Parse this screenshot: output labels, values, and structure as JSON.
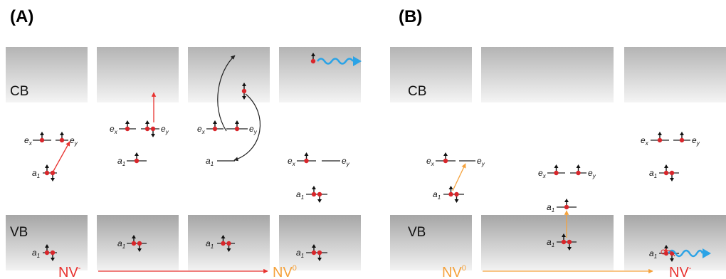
{
  "panels": [
    {
      "label": "(A)",
      "band_labels": {
        "cb": "CB",
        "vb": "VB"
      },
      "process": {
        "from": "NV",
        "from_sup": "-",
        "to": "NV",
        "to_sup": "0",
        "arrow_color": "#e8322f"
      },
      "columns": [
        {
          "levels": [
            {
              "name": "e",
              "sub": "x",
              "electrons": 1
            },
            {
              "name": "e",
              "sub": "y",
              "electrons": 1
            },
            {
              "name": "a",
              "sub": "1",
              "electrons": 2
            },
            {
              "name": "a",
              "sub": "1",
              "electrons": 2
            }
          ]
        },
        {
          "levels": [
            {
              "name": "e",
              "sub": "x",
              "electrons": 1
            },
            {
              "name": "e",
              "sub": "y",
              "electrons": 2
            },
            {
              "name": "a",
              "sub": "1",
              "electrons": 1
            },
            {
              "name": "a",
              "sub": "1",
              "electrons": 2
            }
          ]
        },
        {
          "levels": [
            {
              "name": "e",
              "sub": "x",
              "electrons": 1
            },
            {
              "name": "e",
              "sub": "y",
              "electrons": 1
            },
            {
              "name": "a",
              "sub": "1",
              "electrons": 0
            },
            {
              "name": "a",
              "sub": "1",
              "electrons": 2
            }
          ]
        },
        {
          "levels": [
            {
              "name": "e",
              "sub": "x",
              "electrons": 1
            },
            {
              "name": "e",
              "sub": "y",
              "electrons": 0
            },
            {
              "name": "a",
              "sub": "1",
              "electrons": 2
            },
            {
              "name": "a",
              "sub": "1",
              "electrons": 2
            }
          ]
        }
      ]
    },
    {
      "label": "(B)",
      "band_labels": {
        "cb": "CB",
        "vb": "VB"
      },
      "process": {
        "from": "NV",
        "from_sup": "0",
        "to": "NV",
        "to_sup": "-",
        "arrow_color": "#f5a23c",
        "from_color": "#f5a23c",
        "to_color": "#e8322f"
      },
      "columns": [
        {
          "levels": [
            {
              "name": "e",
              "sub": "x",
              "electrons": 1
            },
            {
              "name": "e",
              "sub": "y",
              "electrons": 0
            },
            {
              "name": "a",
              "sub": "1",
              "electrons": 2
            }
          ]
        },
        {
          "levels": [
            {
              "name": "e",
              "sub": "x",
              "electrons": 1
            },
            {
              "name": "e",
              "sub": "y",
              "electrons": 1
            },
            {
              "name": "a",
              "sub": "1",
              "electrons": 1
            },
            {
              "name": "a",
              "sub": "1",
              "electrons": 2
            }
          ]
        },
        {
          "levels": [
            {
              "name": "e",
              "sub": "x",
              "electrons": 1
            },
            {
              "name": "e",
              "sub": "y",
              "electrons": 1
            },
            {
              "name": "a",
              "sub": "1",
              "electrons": 2
            },
            {
              "name": "a",
              "sub": "1",
              "electrons": 2
            }
          ]
        }
      ]
    }
  ],
  "colors": {
    "electron": "#d8262b",
    "spin_arrow": "#111111",
    "excitation_red": "#e8322f",
    "excitation_orange": "#f5a23c",
    "photon": "#2ba3e6",
    "transfer_arrow": "#222222",
    "band_dark": "#a8a8a8",
    "band_light": "#f2f2f2"
  }
}
